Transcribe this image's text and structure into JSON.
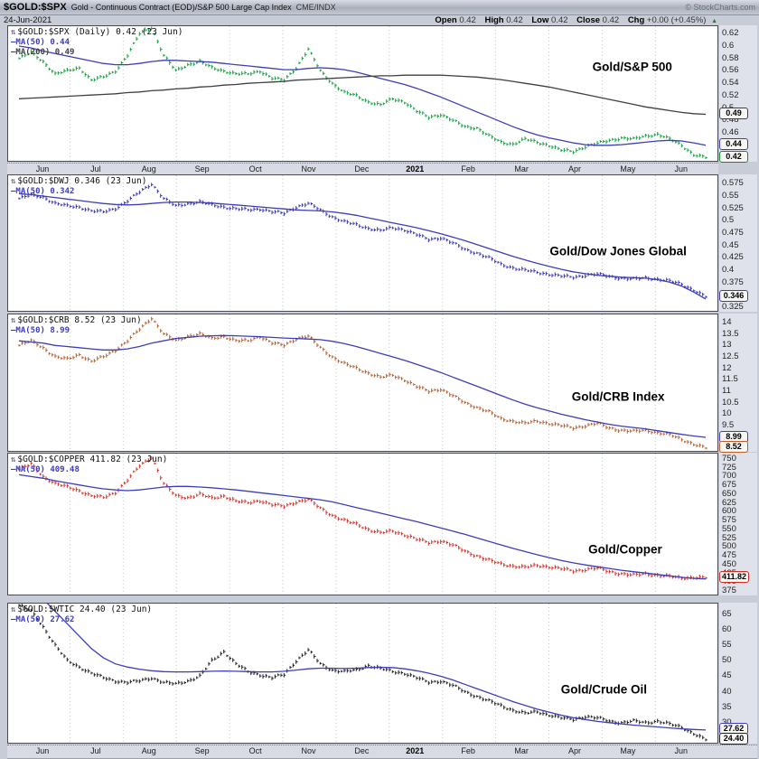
{
  "header": {
    "symbol": "$GOLD:$SPX",
    "description": "Gold - Continuous Contract (EOD)/S&P 500 Large Cap Index",
    "exchange": "CME/INDX",
    "credit": "© StockCharts.com",
    "date": "24-Jun-2021",
    "quote": {
      "items": [
        {
          "label": "Open",
          "value": "0.42"
        },
        {
          "label": "High",
          "value": "0.42"
        },
        {
          "label": "Low",
          "value": "0.42"
        },
        {
          "label": "Close",
          "value": "0.42"
        },
        {
          "label": "Chg",
          "value": "+0.00 (+0.45%)"
        }
      ],
      "direction_glyph": "▲"
    }
  },
  "months": [
    "Jun",
    "Jul",
    "Aug",
    "Sep",
    "Oct",
    "Nov",
    "Dec",
    "2021",
    "Feb",
    "Mar",
    "Apr",
    "May",
    "Jun"
  ],
  "colors": {
    "ma50": "#3d3dbb",
    "ma200": "#3f3f46",
    "gold_spx_bars": "#0e9c3a",
    "gold_dwj_bars": "#2f2fb4",
    "gold_crb_bars": "#b05a28",
    "gold_copper_bars": "#d42a20",
    "gold_wtic_bars": "#1a1a1a"
  },
  "chart_data": [
    {
      "id": "gold-spx",
      "type": "ohlc-bar+line",
      "symbol_legend": "$GOLD:$SPX (Daily) 0.42 (23 Jun)",
      "ma_legends": [
        {
          "label": "MA(50) 0.44",
          "color": "#3d3dbb"
        },
        {
          "label": "MA(200) 0.49",
          "color": "#3f3f46"
        }
      ],
      "annotation": "Gold/S&P 500",
      "annotation_pos": {
        "x_pct": 88,
        "y_pct": 30
      },
      "bar_color": "#0e9c3a",
      "x_unit": "weekly Jun-2020 to Jun-2021",
      "y_min": 0.415,
      "y_max": 0.632,
      "y_ticks": [
        0.62,
        0.6,
        0.58,
        0.56,
        0.54,
        0.52,
        0.5,
        0.48,
        0.46,
        0.44,
        0.42
      ],
      "series": [
        {
          "name": "price",
          "values": [
            0.58,
            0.59,
            0.575,
            0.555,
            0.56,
            0.565,
            0.545,
            0.55,
            0.56,
            0.585,
            0.62,
            0.63,
            0.585,
            0.56,
            0.57,
            0.575,
            0.565,
            0.56,
            0.555,
            0.555,
            0.56,
            0.548,
            0.545,
            0.565,
            0.595,
            0.56,
            0.54,
            0.525,
            0.52,
            0.51,
            0.505,
            0.515,
            0.51,
            0.495,
            0.485,
            0.49,
            0.48,
            0.47,
            0.468,
            0.455,
            0.445,
            0.442,
            0.45,
            0.445,
            0.44,
            0.432,
            0.43,
            0.438,
            0.443,
            0.448,
            0.452,
            0.45,
            0.455,
            0.458,
            0.45,
            0.44,
            0.425,
            0.42
          ]
        },
        {
          "name": "MA(50)",
          "values": [
            0.6,
            0.597,
            0.592,
            0.588,
            0.584,
            0.58,
            0.576,
            0.572,
            0.57,
            0.57,
            0.572,
            0.575,
            0.577,
            0.577,
            0.576,
            0.575,
            0.574,
            0.572,
            0.57,
            0.568,
            0.566,
            0.564,
            0.562,
            0.562,
            0.564,
            0.565,
            0.564,
            0.562,
            0.558,
            0.553,
            0.548,
            0.543,
            0.538,
            0.532,
            0.525,
            0.518,
            0.51,
            0.502,
            0.494,
            0.486,
            0.478,
            0.47,
            0.463,
            0.457,
            0.452,
            0.448,
            0.444,
            0.441,
            0.44,
            0.44,
            0.441,
            0.443,
            0.445,
            0.447,
            0.448,
            0.447,
            0.444,
            0.44
          ]
        },
        {
          "name": "MA(200)",
          "values": [
            0.515,
            0.516,
            0.517,
            0.518,
            0.519,
            0.52,
            0.521,
            0.522,
            0.523,
            0.525,
            0.526,
            0.528,
            0.529,
            0.531,
            0.532,
            0.534,
            0.535,
            0.537,
            0.538,
            0.54,
            0.541,
            0.542,
            0.543,
            0.545,
            0.546,
            0.547,
            0.548,
            0.549,
            0.55,
            0.551,
            0.552,
            0.552,
            0.553,
            0.553,
            0.553,
            0.553,
            0.552,
            0.551,
            0.55,
            0.548,
            0.546,
            0.543,
            0.54,
            0.537,
            0.534,
            0.53,
            0.526,
            0.522,
            0.518,
            0.514,
            0.51,
            0.506,
            0.502,
            0.499,
            0.496,
            0.493,
            0.491,
            0.49
          ]
        }
      ],
      "last_value_boxes": [
        {
          "text": "0.49",
          "value": 0.49,
          "color": "#3f3f46"
        },
        {
          "text": "0.44",
          "value": 0.44,
          "color": "#3d3dbb"
        },
        {
          "text": "0.42",
          "value": 0.42,
          "color": "#0e8c34"
        }
      ]
    },
    {
      "id": "gold-dwj",
      "type": "ohlc-bar+line",
      "symbol_legend": "$GOLD:$DWJ 0.346 (23 Jun)",
      "ma_legends": [
        {
          "label": "MA(50) 0.342",
          "color": "#3d3dbb"
        }
      ],
      "annotation": "Gold/Dow Jones Global",
      "annotation_pos": {
        "x_pct": 86,
        "y_pct": 56
      },
      "bar_color": "#2f2fb4",
      "x_unit": "weekly Jun-2020 to Jun-2021",
      "y_min": 0.318,
      "y_max": 0.592,
      "y_ticks": [
        0.575,
        0.55,
        0.525,
        0.5,
        0.475,
        0.45,
        0.425,
        0.4,
        0.375,
        0.35,
        0.325
      ],
      "series": [
        {
          "name": "price",
          "values": [
            0.545,
            0.552,
            0.548,
            0.535,
            0.53,
            0.528,
            0.52,
            0.518,
            0.525,
            0.54,
            0.558,
            0.575,
            0.545,
            0.53,
            0.535,
            0.538,
            0.532,
            0.528,
            0.524,
            0.522,
            0.524,
            0.518,
            0.515,
            0.528,
            0.535,
            0.522,
            0.508,
            0.498,
            0.492,
            0.485,
            0.48,
            0.486,
            0.482,
            0.472,
            0.462,
            0.466,
            0.455,
            0.442,
            0.435,
            0.425,
            0.412,
            0.405,
            0.4,
            0.396,
            0.392,
            0.388,
            0.386,
            0.39,
            0.392,
            0.388,
            0.384,
            0.382,
            0.385,
            0.382,
            0.378,
            0.372,
            0.36,
            0.346
          ]
        },
        {
          "name": "MA(50)",
          "values": [
            0.555,
            0.553,
            0.55,
            0.547,
            0.544,
            0.541,
            0.538,
            0.535,
            0.533,
            0.532,
            0.533,
            0.535,
            0.537,
            0.538,
            0.538,
            0.537,
            0.536,
            0.534,
            0.532,
            0.53,
            0.528,
            0.526,
            0.524,
            0.522,
            0.521,
            0.52,
            0.518,
            0.515,
            0.511,
            0.506,
            0.501,
            0.496,
            0.491,
            0.486,
            0.48,
            0.474,
            0.467,
            0.46,
            0.452,
            0.444,
            0.436,
            0.428,
            0.421,
            0.414,
            0.408,
            0.402,
            0.397,
            0.393,
            0.39,
            0.388,
            0.386,
            0.385,
            0.384,
            0.381,
            0.376,
            0.368,
            0.356,
            0.342
          ]
        }
      ],
      "last_value_boxes": [
        {
          "text": "0.346",
          "value": 0.346,
          "color": "#3d3dbb"
        }
      ]
    },
    {
      "id": "gold-crb",
      "type": "ohlc-bar+line",
      "symbol_legend": "$GOLD:$CRB 8.52 (23 Jun)",
      "ma_legends": [
        {
          "label": "MA(50) 8.99",
          "color": "#3d3dbb"
        }
      ],
      "annotation": "Gold/CRB Index",
      "annotation_pos": {
        "x_pct": 86,
        "y_pct": 60
      },
      "bar_color": "#b05a28",
      "x_unit": "weekly Jun-2020 to Jun-2021",
      "y_min": 8.4,
      "y_max": 14.35,
      "y_ticks": [
        14.0,
        13.5,
        13.0,
        12.5,
        12.0,
        11.5,
        11.0,
        10.5,
        10.0,
        9.5
      ],
      "series": [
        {
          "name": "price",
          "values": [
            13.0,
            13.2,
            12.9,
            12.5,
            12.4,
            12.6,
            12.3,
            12.5,
            12.8,
            13.2,
            13.7,
            14.2,
            13.5,
            13.2,
            13.4,
            13.5,
            13.3,
            13.4,
            13.2,
            13.2,
            13.4,
            13.1,
            13.0,
            13.3,
            13.4,
            12.9,
            12.5,
            12.2,
            12.0,
            11.8,
            11.6,
            11.7,
            11.5,
            11.2,
            11.0,
            11.1,
            10.8,
            10.5,
            10.3,
            10.1,
            9.8,
            9.7,
            9.6,
            9.7,
            9.6,
            9.5,
            9.4,
            9.5,
            9.6,
            9.4,
            9.3,
            9.25,
            9.3,
            9.2,
            9.1,
            8.9,
            8.7,
            8.52
          ]
        },
        {
          "name": "MA(50)",
          "values": [
            13.2,
            13.15,
            13.1,
            13.0,
            12.95,
            12.9,
            12.85,
            12.8,
            12.8,
            12.85,
            12.95,
            13.1,
            13.2,
            13.3,
            13.35,
            13.4,
            13.42,
            13.43,
            13.42,
            13.4,
            13.38,
            13.35,
            13.32,
            13.3,
            13.28,
            13.25,
            13.18,
            13.08,
            12.95,
            12.8,
            12.65,
            12.5,
            12.35,
            12.18,
            12.0,
            11.82,
            11.62,
            11.42,
            11.22,
            11.02,
            10.82,
            10.62,
            10.44,
            10.28,
            10.14,
            10.0,
            9.88,
            9.76,
            9.66,
            9.56,
            9.48,
            9.42,
            9.36,
            9.28,
            9.2,
            9.12,
            9.05,
            8.99
          ]
        }
      ],
      "last_value_boxes": [
        {
          "text": "8.99",
          "value": 8.99,
          "color": "#3d3dbb"
        },
        {
          "text": "8.52",
          "value": 8.52,
          "color": "#c25a28"
        }
      ]
    },
    {
      "id": "gold-copper",
      "type": "ohlc-bar+line",
      "symbol_legend": "$GOLD:$COPPER 411.82 (23 Jun)",
      "ma_legends": [
        {
          "label": "MA(50) 409.48",
          "color": "#3d3dbb"
        }
      ],
      "annotation": "Gold/Copper",
      "annotation_pos": {
        "x_pct": 87,
        "y_pct": 68
      },
      "bar_color": "#d42a20",
      "x_unit": "weekly Jun-2020 to Jun-2021",
      "y_min": 365,
      "y_max": 765,
      "y_ticks": [
        750,
        725,
        700,
        675,
        650,
        625,
        600,
        575,
        550,
        525,
        500,
        475,
        450,
        425,
        400,
        375
      ],
      "series": [
        {
          "name": "price",
          "values": [
            720,
            735,
            700,
            680,
            670,
            660,
            645,
            640,
            655,
            690,
            730,
            755,
            680,
            645,
            640,
            650,
            638,
            645,
            630,
            625,
            632,
            620,
            615,
            628,
            635,
            610,
            590,
            575,
            565,
            550,
            540,
            545,
            535,
            522,
            512,
            518,
            505,
            488,
            475,
            462,
            452,
            446,
            442,
            448,
            444,
            438,
            432,
            436,
            440,
            430,
            424,
            420,
            424,
            420,
            416,
            412,
            414,
            411.82
          ]
        },
        {
          "name": "MA(50)",
          "values": [
            705,
            700,
            695,
            688,
            682,
            676,
            670,
            665,
            662,
            660,
            662,
            666,
            670,
            672,
            672,
            670,
            668,
            665,
            662,
            658,
            654,
            650,
            646,
            642,
            638,
            634,
            628,
            620,
            612,
            604,
            596,
            588,
            580,
            572,
            563,
            554,
            545,
            536,
            526,
            516,
            506,
            496,
            487,
            478,
            470,
            462,
            455,
            449,
            444,
            439,
            434,
            430,
            426,
            422,
            418,
            414,
            411,
            409.48
          ]
        }
      ],
      "last_value_boxes": [
        {
          "text": "411.82",
          "value": 411.82,
          "color": "#d42a20"
        }
      ]
    },
    {
      "id": "gold-wtic",
      "type": "ohlc-bar+line",
      "symbol_legend": "$GOLD:$WTIC 24.40 (23 Jun)",
      "ma_legends": [
        {
          "label": "MA(50) 27.62",
          "color": "#3d3dbb"
        }
      ],
      "annotation": "Gold/Crude Oil",
      "annotation_pos": {
        "x_pct": 84,
        "y_pct": 62
      },
      "bar_color": "#1a1a1a",
      "x_unit": "weekly Jun-2020 to Jun-2021",
      "y_min": 23.5,
      "y_max": 68.5,
      "y_ticks": [
        65,
        60,
        55,
        50,
        45,
        40,
        35,
        30
      ],
      "series": [
        {
          "name": "price",
          "values": [
            68,
            66,
            61,
            55,
            50,
            48,
            46,
            44.5,
            43.5,
            43,
            43.5,
            44.5,
            43,
            42.5,
            43.5,
            45,
            50,
            53,
            49,
            46.5,
            45.5,
            44.5,
            45.5,
            50,
            53.5,
            49,
            47,
            46.5,
            47,
            48.5,
            47.5,
            46.5,
            46,
            44.5,
            43,
            43.5,
            42,
            40,
            38.5,
            37,
            35.5,
            34,
            33,
            33.5,
            32.5,
            31.5,
            31,
            32,
            31.5,
            30.5,
            30,
            30.5,
            30,
            30.5,
            29.5,
            28.5,
            26.5,
            24.4
          ]
        },
        {
          "name": "MA(50)",
          "values": [
            75,
            73,
            70,
            66,
            62,
            58,
            54,
            51,
            49,
            48,
            47.3,
            46.8,
            46.5,
            46.4,
            46.4,
            46.5,
            46.6,
            46.7,
            46.6,
            46.5,
            46.4,
            46.4,
            46.6,
            47.0,
            47.4,
            47.6,
            47.6,
            47.5,
            47.6,
            47.8,
            47.9,
            47.8,
            47.4,
            46.8,
            46.0,
            45.0,
            43.8,
            42.4,
            41.0,
            39.6,
            38.2,
            36.8,
            35.6,
            34.4,
            33.4,
            32.4,
            31.6,
            31.0,
            30.4,
            30.0,
            29.6,
            29.2,
            28.9,
            28.6,
            28.3,
            28.0,
            27.8,
            27.62
          ]
        }
      ],
      "last_value_boxes": [
        {
          "text": "27.62",
          "value": 27.62,
          "color": "#3d3dbb"
        },
        {
          "text": "24.40",
          "value": 24.4,
          "color": "#222222"
        }
      ]
    }
  ]
}
